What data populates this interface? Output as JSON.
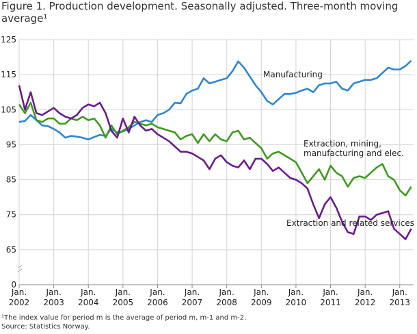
{
  "chart_data": {
    "type": "line",
    "title": "Figure 1. Production development. Seasonally adjusted. Three-month moving average¹",
    "footnote": "¹The index value for period m is the average of period m, m-1 and m-2.",
    "source": "Source: Statistics Norway.",
    "x": [
      2002,
      2002.167,
      2002.333,
      2002.5,
      2002.667,
      2002.833,
      2003,
      2003.167,
      2003.333,
      2003.5,
      2003.667,
      2003.833,
      2004,
      2004.167,
      2004.333,
      2004.5,
      2004.667,
      2004.833,
      2005,
      2005.167,
      2005.333,
      2005.5,
      2005.667,
      2005.833,
      2006,
      2006.167,
      2006.333,
      2006.5,
      2006.667,
      2006.833,
      2007,
      2007.167,
      2007.333,
      2007.5,
      2007.667,
      2007.833,
      2008,
      2008.167,
      2008.333,
      2008.5,
      2008.667,
      2008.833,
      2009,
      2009.167,
      2009.333,
      2009.5,
      2009.667,
      2009.833,
      2010,
      2010.167,
      2010.333,
      2010.5,
      2010.667,
      2010.833,
      2011,
      2011.167,
      2011.333,
      2011.5,
      2011.667,
      2011.833,
      2012,
      2012.167,
      2012.333,
      2012.5,
      2012.667,
      2012.833,
      2013,
      2013.167,
      2013.333
    ],
    "series": [
      {
        "name": "Manufacturing",
        "color": "#2f86d2",
        "values": [
          101.5,
          101.8,
          103.5,
          102,
          100.5,
          100.3,
          99.5,
          98.5,
          97,
          97.5,
          97.3,
          97,
          96.5,
          97.2,
          97.8,
          97.5,
          99.5,
          98.5,
          98.8,
          99.5,
          100.5,
          101.5,
          102,
          101.5,
          103.5,
          104,
          105,
          107,
          106.8,
          109.5,
          110.5,
          111,
          114,
          112.5,
          113,
          113.5,
          114,
          116,
          118.8,
          117,
          114.5,
          112,
          110,
          107.5,
          106.5,
          108,
          109.5,
          109.5,
          109.8,
          110.5,
          111,
          110,
          112,
          112.5,
          112.5,
          113,
          111,
          110.5,
          112.5,
          113,
          113.5,
          113.5,
          114,
          115.5,
          117,
          116.5,
          116.5,
          117.5,
          119
        ]
      },
      {
        "name": "Extraction, mining, manufacturing and elec.",
        "color": "#3e9a1e",
        "values": [
          106.5,
          104,
          107,
          102,
          101.5,
          102.5,
          102.5,
          101,
          101,
          102.5,
          102,
          103,
          102,
          102.5,
          100.5,
          97,
          100.5,
          98,
          99,
          100,
          101.5,
          101,
          100.5,
          101,
          100,
          99.5,
          99,
          98.5,
          96.5,
          97.5,
          98,
          95.5,
          98,
          96,
          98,
          96.5,
          96,
          98.5,
          99,
          96.5,
          97,
          95.5,
          94,
          91,
          92.5,
          93,
          92,
          91,
          90,
          87,
          84,
          86,
          88,
          85,
          89,
          87,
          86,
          83,
          85.5,
          86,
          85.5,
          87,
          88.5,
          89.5,
          86,
          85,
          82,
          80.5,
          83
        ]
      },
      {
        "name": "Extraction and related services",
        "color": "#6a1b8c",
        "values": [
          112,
          105,
          110,
          104,
          103.5,
          104.5,
          105.5,
          104,
          103,
          102.5,
          103.5,
          105.5,
          106.5,
          106,
          107,
          104,
          99,
          97,
          102.5,
          98.5,
          103,
          100.5,
          99,
          99.5,
          98,
          97,
          96,
          94.5,
          93,
          93,
          92.5,
          91.5,
          90.5,
          88,
          91,
          92,
          90,
          89,
          88.5,
          90.5,
          88,
          91,
          91,
          89.5,
          87.5,
          88.5,
          87,
          85.5,
          85,
          84,
          82.5,
          78,
          74,
          78,
          80,
          77,
          73,
          70,
          69.5,
          74.5,
          74.5,
          73.5,
          75,
          75.5,
          76,
          71,
          69.5,
          68,
          71
        ]
      }
    ],
    "xlim": [
      2002,
      2013.4
    ],
    "xticks": [
      {
        "value": 2002,
        "label": "Jan. 2002"
      },
      {
        "value": 2003,
        "label": "Jan. 2003"
      },
      {
        "value": 2004,
        "label": "Jan. 2004"
      },
      {
        "value": 2005,
        "label": "Jan. 2005"
      },
      {
        "value": 2006,
        "label": "Jan. 2006"
      },
      {
        "value": 2007,
        "label": "Jan. 2007"
      },
      {
        "value": 2008,
        "label": "Jan. 2008"
      },
      {
        "value": 2009,
        "label": "Jan. 2009"
      },
      {
        "value": 2010,
        "label": "Jan. 2010"
      },
      {
        "value": 2011,
        "label": "Jan. 2011"
      },
      {
        "value": 2012,
        "label": "Jan. 2012"
      },
      {
        "value": 2013,
        "label": "Jan. 2013"
      }
    ],
    "ylim": [
      0,
      125
    ],
    "yticks": [
      0,
      65,
      75,
      85,
      95,
      105,
      115,
      125
    ],
    "grid": true
  }
}
